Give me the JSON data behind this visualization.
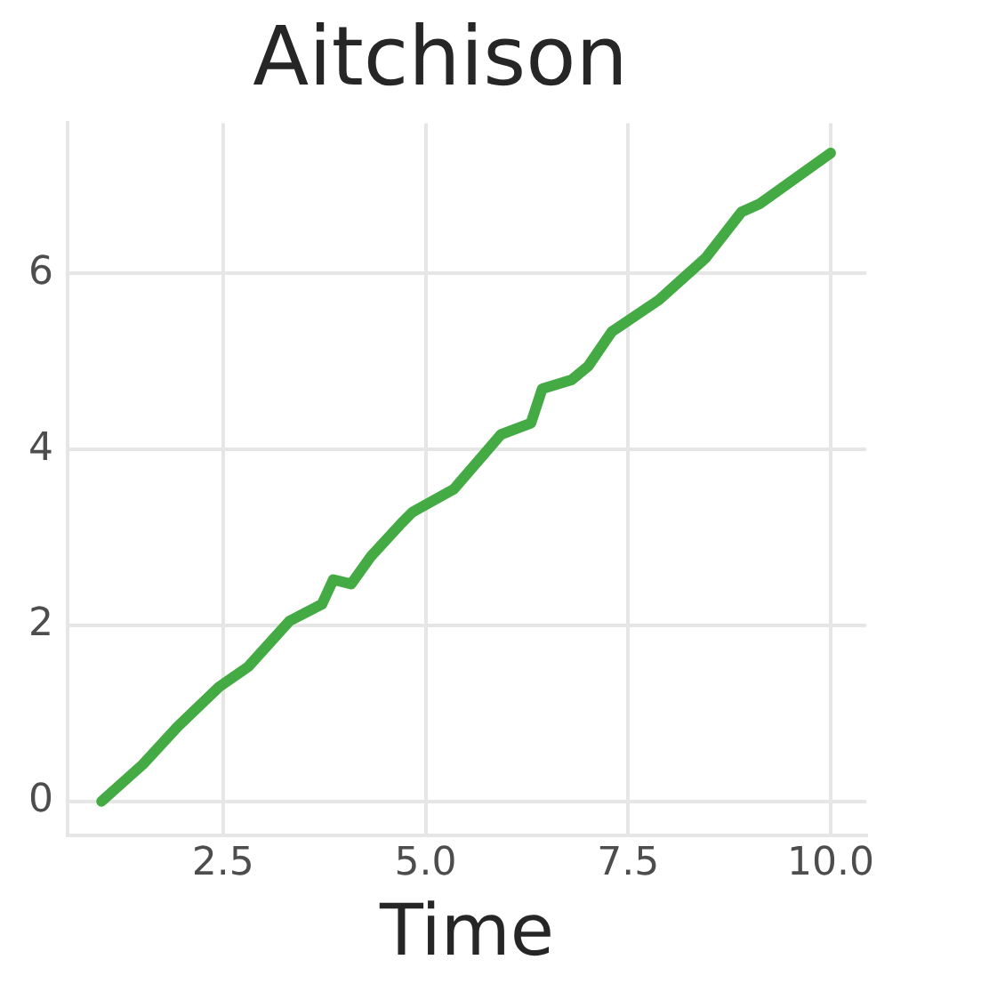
{
  "chart_data": {
    "type": "line",
    "title": "Aitchison",
    "xlabel": "Time",
    "x": [
      1.0,
      1.51,
      1.94,
      2.45,
      2.81,
      3.32,
      3.72,
      3.86,
      4.08,
      4.33,
      4.7,
      4.84,
      5.35,
      5.93,
      6.3,
      6.44,
      6.8,
      7.01,
      7.3,
      7.88,
      8.46,
      8.9,
      9.12,
      10.0
    ],
    "series": [
      {
        "color": "#44aa44",
        "values": [
          0.0,
          0.42,
          0.85,
          1.3,
          1.53,
          2.05,
          2.24,
          2.52,
          2.47,
          2.79,
          3.16,
          3.29,
          3.55,
          4.17,
          4.3,
          4.69,
          4.79,
          4.95,
          5.34,
          5.7,
          6.18,
          6.7,
          6.79,
          7.37
        ]
      }
    ],
    "xlim": [
      0.58,
      10.44
    ],
    "ylim": [
      -0.39,
      7.71
    ],
    "xticks": [
      {
        "value": 2.5,
        "label": "2.5"
      },
      {
        "value": 5,
        "label": "5.0"
      },
      {
        "value": 7.5,
        "label": "7.5"
      },
      {
        "value": 10,
        "label": "10.0"
      }
    ],
    "yticks": [
      0,
      2,
      4,
      6
    ],
    "grid": true,
    "marker": "none",
    "line_style": "solid",
    "legend": false
  }
}
